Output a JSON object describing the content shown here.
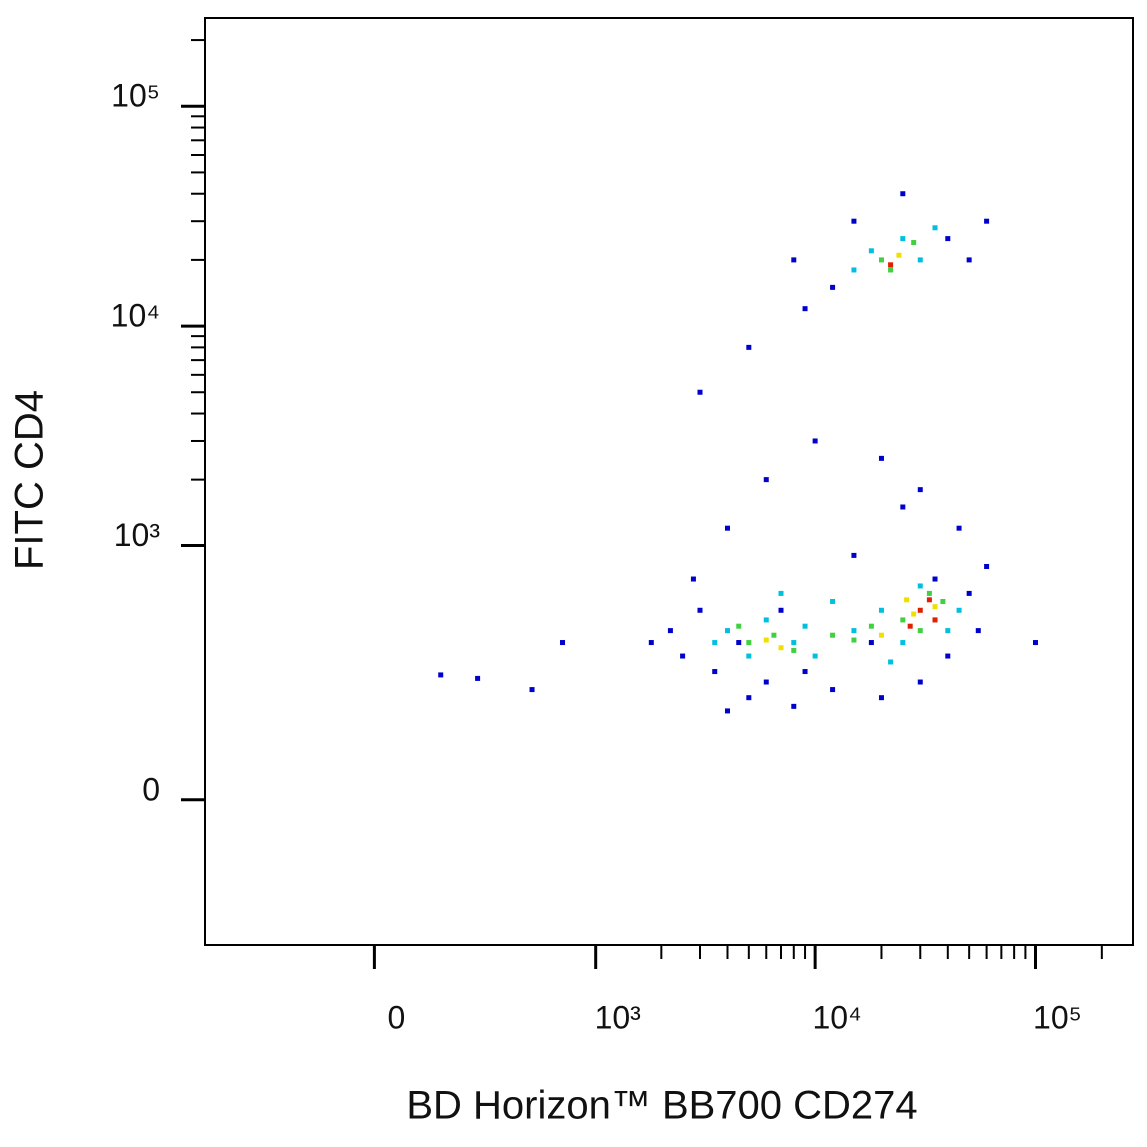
{
  "chart_data": {
    "type": "scatter",
    "x_label": "BD Horizon™ BB700 CD274",
    "y_label": "FITC  CD4",
    "xscale": "asinh",
    "yscale": "asinh",
    "xlim": [
      -570,
      277000
    ],
    "ylim": [
      -305,
      252000
    ],
    "xticks": [
      0,
      {
        "value": 1000,
        "label": "10³"
      },
      {
        "value": 10000,
        "label": "10⁴"
      },
      {
        "value": 100000,
        "label": "10⁵"
      }
    ],
    "yticks": [
      0,
      {
        "value": 1000,
        "label": "10³"
      },
      {
        "value": 10000,
        "label": "10⁴"
      },
      {
        "value": 100000,
        "label": "10⁵"
      }
    ],
    "xminorticks": [
      2000,
      3000,
      4000,
      5000,
      6000,
      7000,
      8000,
      9000,
      20000,
      30000,
      40000,
      50000,
      60000,
      70000,
      80000,
      90000,
      200000
    ],
    "yminorticks": [
      2000,
      3000,
      4000,
      5000,
      6000,
      7000,
      8000,
      9000,
      20000,
      30000,
      40000,
      50000,
      60000,
      70000,
      80000,
      90000,
      200000
    ],
    "series": [
      {
        "color": "#0000cc",
        "x": [
          2500,
          3000,
          3500,
          2800,
          4000,
          5000,
          6000,
          8000,
          12000,
          20000,
          30000,
          40000,
          55000,
          60000,
          45000,
          30000,
          20000,
          10000,
          6000,
          4000,
          3000,
          5000,
          9000,
          15000,
          25000,
          40000,
          50000,
          12000,
          8000,
          60000,
          2200,
          1800,
          700,
          500,
          150,
          260,
          100000,
          7000,
          15000,
          25000,
          35000,
          50000,
          4500,
          9000,
          18000
        ],
        "y": [
          300,
          500,
          250,
          700,
          150,
          180,
          220,
          160,
          200,
          180,
          220,
          300,
          400,
          800,
          1200,
          1800,
          2500,
          3000,
          2000,
          1200,
          5000,
          8000,
          12000,
          30000,
          40000,
          25000,
          20000,
          15000,
          20000,
          30000,
          400,
          350,
          350,
          200,
          240,
          230,
          350,
          500,
          900,
          1500,
          700,
          600,
          350,
          250,
          350
        ]
      },
      {
        "color": "#00c0e0",
        "x": [
          4000,
          5000,
          6000,
          8000,
          10000,
          15000,
          20000,
          25000,
          35000,
          45000,
          3500,
          7000,
          12000,
          30000,
          18000,
          25000,
          30000,
          15000,
          35000,
          40000,
          9000,
          22000
        ],
        "y": [
          400,
          300,
          450,
          350,
          300,
          400,
          500,
          350,
          450,
          500,
          350,
          600,
          550,
          650,
          22000,
          25000,
          20000,
          18000,
          28000,
          400,
          420,
          280
        ]
      },
      {
        "color": "#40d040",
        "x": [
          5000,
          6500,
          8000,
          12000,
          18000,
          25000,
          30000,
          38000,
          20000,
          28000,
          22000,
          4500,
          15000,
          33000
        ],
        "y": [
          350,
          380,
          320,
          380,
          420,
          450,
          400,
          550,
          20000,
          24000,
          18000,
          420,
          360,
          600
        ]
      },
      {
        "color": "#f0e000",
        "x": [
          6000,
          20000,
          28000,
          35000,
          24000,
          26000,
          7000
        ],
        "y": [
          360,
          380,
          480,
          520,
          21000,
          560,
          330
        ]
      },
      {
        "color": "#e02000",
        "x": [
          30000,
          35000,
          22000,
          33000,
          27000
        ],
        "y": [
          500,
          450,
          19000,
          560,
          420
        ]
      }
    ]
  }
}
